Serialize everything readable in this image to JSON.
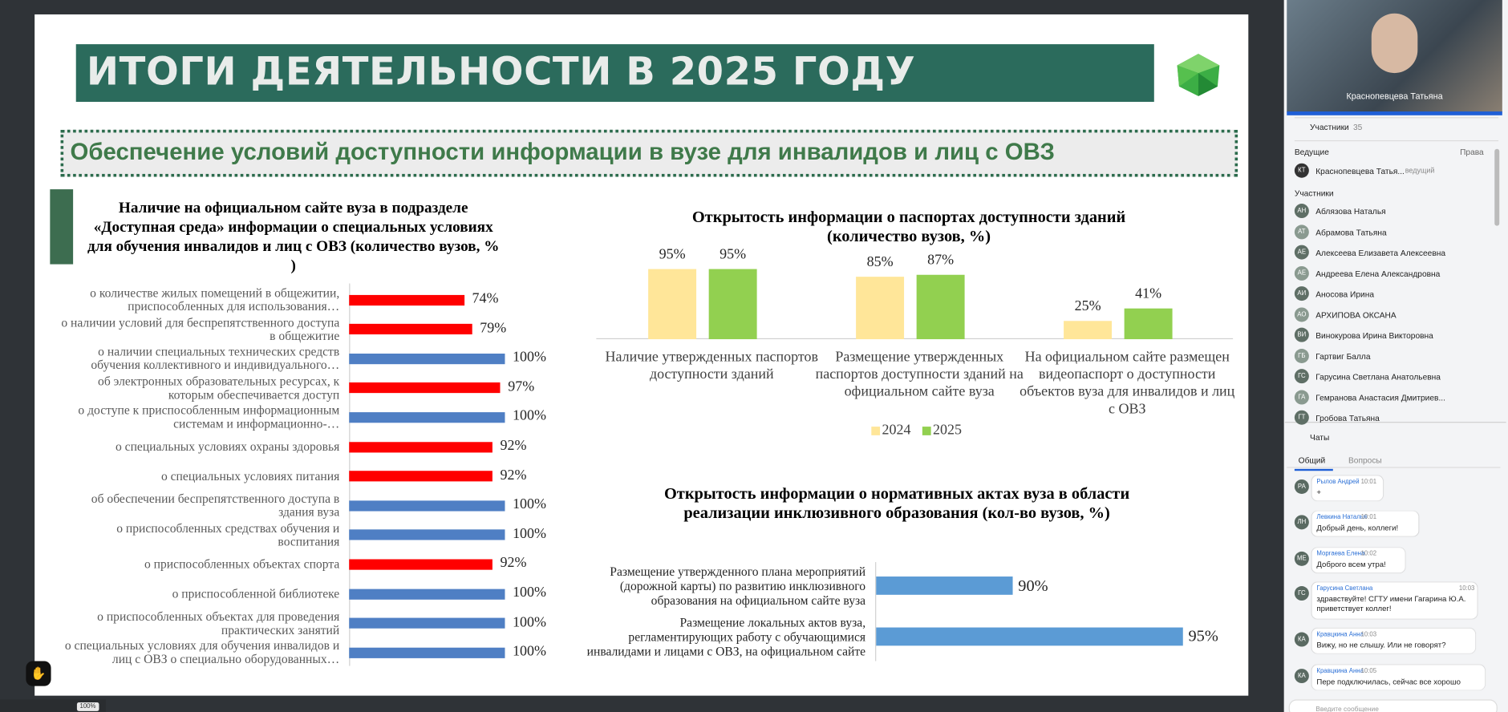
{
  "slide": {
    "title": "ИТОГИ ДЕЯТЕЛЬНОСТИ В 2025 ГОДУ",
    "subtitle": "Обеспечение условий доступности информации в вузе для инвалидов и лиц с ОВЗ"
  },
  "chart_data": [
    {
      "type": "hbar",
      "title": "Наличие на официальном сайте вуза в подразделе «Доступная среда» информации о специальных условиях для обучения инвалидов и лиц с ОВЗ (количество вузов, % )",
      "categories": [
        "о количестве жилых помещений в общежитии, приспособленных для использования…",
        "о наличии условий для беспрепятственного доступа в общежитие",
        "о наличии специальных технических средств обучения коллективного и индивидуального…",
        "об электронных образовательных ресурсах, к которым обеспечивается доступ",
        "о доступе к приспособленным информационным системам и информационно-…",
        "о специальных условиях охраны здоровья",
        "о специальных условиях питания",
        "об обеспечении беспрепятственного доступа в здания вуза",
        "о приспособленных средствах обучения и воспитания",
        "о приспособленных объектах спорта",
        "о приспособленной библиотеке",
        "о приспособленных объектах для проведения практических занятий",
        "о специальных условиях для обучения инвалидов и лиц с ОВЗ о специально оборудованных…"
      ],
      "values": [
        74,
        79,
        100,
        97,
        100,
        92,
        92,
        100,
        100,
        92,
        100,
        100,
        100
      ],
      "value_labels": [
        "74%",
        "79%",
        "100%",
        "97%",
        "100%",
        "92%",
        "92%",
        "100%",
        "100%",
        "92%",
        "100%",
        "100%",
        "100%"
      ],
      "colors": [
        "#ff0000",
        "#ff0000",
        "#4f7fc4",
        "#ff0000",
        "#4f7fc4",
        "#ff0000",
        "#ff0000",
        "#4f7fc4",
        "#4f7fc4",
        "#ff0000",
        "#4f7fc4",
        "#4f7fc4",
        "#4f7fc4"
      ]
    },
    {
      "type": "grouped_bar",
      "title": "Открытость информации о паспортах доступности зданий (количество вузов, %)",
      "categories": [
        "Наличие утвержденных паспортов доступности зданий",
        "Размещение утвержденных паспортов доступности зданий на официальном сайте вуза",
        "На официальном сайте размещен видеопаспорт о доступности объектов вуза для инвалидов и лиц с ОВЗ"
      ],
      "series": [
        {
          "name": "2024",
          "color": "#ffe699",
          "values": [
            95,
            85,
            25
          ],
          "value_labels": [
            "95%",
            "85%",
            "25%"
          ]
        },
        {
          "name": "2025",
          "color": "#92d050",
          "values": [
            95,
            87,
            41
          ],
          "value_labels": [
            "95%",
            "87%",
            "41%"
          ]
        }
      ],
      "legend": "bottom"
    },
    {
      "type": "hbar",
      "title": "Открытость информации о нормативных актах вуза в области реализации инклюзивного образования (кол-во вузов,  %)",
      "categories": [
        "Размещение утвержденного плана мероприятий (дорожной карты) по развитию инклюзивного образования на официальном сайте вуза",
        "Размещение локальных актов вуза, регламентирующих работу с обучающимися инвалидами и лицами с ОВЗ, на официальном сайте"
      ],
      "values": [
        90,
        95
      ],
      "value_labels": [
        "90%",
        "95%"
      ],
      "color": "#5b9bd5",
      "xlim": [
        86,
        96
      ]
    }
  ],
  "sidebar": {
    "video_name": "Краснопевцева Татьяна",
    "participants_label": "Участники",
    "participants_count": 35,
    "hosts_label": "Ведущие",
    "rights_label": "Права",
    "host": {
      "initials": "КТ",
      "name": "Краснопевцева Татья...",
      "role": "ведущий"
    },
    "participants_heading": "Участники",
    "participants": [
      {
        "initials": "АН",
        "name": "Аблязова Наталья"
      },
      {
        "initials": "АТ",
        "name": "Абрамова Татьяна"
      },
      {
        "initials": "АЕ",
        "name": "Алексеева Елизавета Алексеевна"
      },
      {
        "initials": "АЕ",
        "name": "Андреева Елена Александровна"
      },
      {
        "initials": "АИ",
        "name": "Аносова Ирина"
      },
      {
        "initials": "АО",
        "name": "АРХИПОВА ОКСАНА"
      },
      {
        "initials": "ВИ",
        "name": "Винокурова Ирина Викторовна"
      },
      {
        "initials": "ГБ",
        "name": "Гартвиг Балла"
      },
      {
        "initials": "ГС",
        "name": "Гарусина Светлана Анатольевна"
      },
      {
        "initials": "ГА",
        "name": "Гемранова Анастасия Дмитриев..."
      },
      {
        "initials": "ГТ",
        "name": "Гробова Татьяна"
      }
    ]
  },
  "chat": {
    "title": "Чаты",
    "tabs": [
      "Общий",
      "Вопросы"
    ],
    "messages": [
      {
        "initials": "РА",
        "author": "Рылов Андрей",
        "time": "10:01",
        "text": "+"
      },
      {
        "initials": "ЛН",
        "author": "Левкина Наталья",
        "time": "10:01",
        "text": "Добрый день, коллеги!"
      },
      {
        "initials": "МЕ",
        "author": "Моргаева Елена",
        "time": "10:02",
        "text": "Доброго всем утра!"
      },
      {
        "initials": "ГС",
        "author": "Гарусина Светлана",
        "time": "10:03",
        "text": "здравствуйте! СГТУ имени Гагарина Ю.А. приветствует коллег!"
      },
      {
        "initials": "КА",
        "author": "Кравцкина Анна",
        "time": "10:03",
        "text": "Вижу, но не слышу. Или не говорят?"
      },
      {
        "initials": "КА",
        "author": "Кравцкина Анна",
        "time": "10:05",
        "text": "Пере подключилась, сейчас все хорошо"
      }
    ],
    "input_placeholder": "Введите сообщение"
  },
  "zoom": "100%"
}
